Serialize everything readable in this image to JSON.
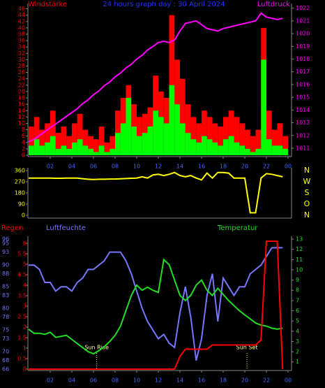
{
  "chart_data": [
    {
      "type": "bar",
      "title": "24 hours graph day : 30 April 2024",
      "ylabel": "Windstärke",
      "y2label": "Luftdruck",
      "xlim": [
        0,
        24
      ],
      "xticks": [
        {
          "value": 2,
          "label": "02"
        },
        {
          "value": 4,
          "label": "04"
        },
        {
          "value": 6,
          "label": "06"
        },
        {
          "value": 8,
          "label": "08"
        },
        {
          "value": 10,
          "label": "10"
        },
        12,
        14,
        16,
        18,
        20,
        22,
        {
          "value": 24,
          "label": "00"
        }
      ],
      "ylim": [
        0,
        47
      ],
      "yticks": [
        0,
        2,
        4,
        6,
        8,
        10,
        12,
        14,
        16,
        18,
        20,
        22,
        24,
        26,
        28,
        30,
        32,
        34,
        36,
        38,
        40,
        42,
        44,
        46
      ],
      "y2lim": [
        1010.45,
        1022.2
      ],
      "y2ticks": [
        1011,
        1012,
        1013,
        1014,
        1015,
        1016,
        1017,
        1018,
        1019,
        1020,
        1021,
        1022
      ],
      "x": [
        0,
        0.5,
        1,
        1.5,
        2,
        2.5,
        3,
        3.5,
        4,
        4.5,
        5,
        5.5,
        6,
        6.5,
        7,
        7.5,
        8,
        8.5,
        9,
        9.5,
        10,
        10.5,
        11,
        11.5,
        12,
        12.5,
        13,
        13.5,
        14,
        14.5,
        15,
        15.5,
        16,
        16.5,
        17,
        17.5,
        18,
        18.5,
        19,
        19.5,
        20,
        20.5,
        21,
        21.5,
        22,
        22.5,
        23,
        23.5
      ],
      "series": [
        {
          "color": "#ff0000",
          "values": [
            9,
            12,
            8,
            10,
            14,
            7,
            9,
            6,
            10,
            13,
            8,
            6,
            5,
            9,
            4,
            6,
            14,
            18,
            22,
            16,
            12,
            13,
            15,
            25,
            20,
            18,
            44,
            30,
            24,
            16,
            12,
            10,
            14,
            12,
            10,
            9,
            12,
            14,
            12,
            10,
            8,
            6,
            8,
            40,
            14,
            8,
            10,
            6
          ]
        },
        {
          "color": "#00ff00",
          "values": [
            3,
            5,
            3,
            4,
            6,
            2,
            3,
            2,
            4,
            5,
            3,
            2,
            1,
            3,
            1,
            2,
            7,
            10,
            18,
            9,
            6,
            7,
            9,
            14,
            12,
            10,
            22,
            16,
            10,
            7,
            5,
            4,
            6,
            5,
            4,
            3,
            5,
            6,
            4,
            3,
            2,
            1,
            2,
            30,
            5,
            3,
            3,
            2
          ]
        },
        {
          "color": "#ff00ff",
          "axis": "y2",
          "values": [
            1011.5,
            1011.7,
            1012.0,
            1012.3,
            1012.6,
            1012.9,
            1013.2,
            1013.5,
            1013.8,
            1014.1,
            1014.5,
            1014.8,
            1015.2,
            1015.5,
            1015.9,
            1016.2,
            1016.6,
            1016.9,
            1017.3,
            1017.6,
            1018.0,
            1018.3,
            1018.7,
            1019.0,
            1019.3,
            1019.4,
            1019.3,
            1019.5,
            1020.2,
            1020.8,
            1020.9,
            1021.0,
            1020.7,
            1020.4,
            1020.3,
            1020.2,
            1020.4,
            1020.5,
            1020.6,
            1020.7,
            1020.8,
            1020.9,
            1021.0,
            1021.6,
            1021.3,
            1021.2,
            1021.1,
            1021.2
          ]
        }
      ]
    },
    {
      "type": "line",
      "xlim": [
        0,
        24
      ],
      "ylim": [
        0,
        360
      ],
      "yticks": [
        0,
        90,
        180,
        270,
        360
      ],
      "direction_labels": [
        "N",
        "O",
        "S",
        "W",
        "N"
      ],
      "x": [
        0,
        0.5,
        1,
        1.5,
        2,
        2.5,
        3,
        3.5,
        4,
        4.5,
        5,
        5.5,
        6,
        6.5,
        7,
        7.5,
        8,
        8.5,
        9,
        9.5,
        10,
        10.5,
        11,
        11.5,
        12,
        12.5,
        13,
        13.5,
        14,
        14.5,
        15,
        15.5,
        16,
        16.5,
        17,
        17.5,
        18,
        18.5,
        19,
        19.5,
        20,
        20.5,
        21,
        21.5,
        22,
        22.5,
        23,
        23.5
      ],
      "series": [
        {
          "color": "#ffff00",
          "values": [
            300,
            300,
            300,
            300,
            300,
            298,
            298,
            300,
            300,
            300,
            295,
            290,
            288,
            290,
            290,
            292,
            292,
            294,
            296,
            298,
            300,
            310,
            300,
            325,
            330,
            320,
            330,
            345,
            320,
            310,
            320,
            300,
            285,
            340,
            300,
            345,
            345,
            340,
            300,
            300,
            300,
            20,
            20,
            300,
            335,
            330,
            320,
            310
          ]
        }
      ]
    },
    {
      "type": "line",
      "labels": {
        "rain": "Regen",
        "humidity": "Luftfeuchte",
        "temperature": "Temperatur"
      },
      "annotations": [
        {
          "text": "Sun Rise",
          "x": 6.3
        },
        {
          "text": "Sun Set",
          "x": 20.2
        }
      ],
      "xlim": [
        0,
        24
      ],
      "xticks": [
        {
          "value": 2,
          "label": "02"
        },
        {
          "value": 4,
          "label": "04"
        },
        {
          "value": 6,
          "label": "06"
        },
        {
          "value": 8,
          "label": "08"
        },
        {
          "value": 10,
          "label": "10"
        },
        12,
        14,
        16,
        18,
        20,
        22,
        {
          "value": 24,
          "label": "00"
        }
      ],
      "ylim": [
        0,
        6.2
      ],
      "yticks": [
        0,
        0.5,
        1,
        1.5,
        2,
        2.5,
        3,
        3.5,
        4,
        4.5,
        5,
        5.5,
        6
      ],
      "y2lim": [
        0.3,
        13
      ],
      "y2ticks": [
        1,
        2,
        3,
        4,
        5,
        6,
        7,
        8,
        9,
        10,
        11,
        12,
        13
      ],
      "y3lim": [
        66,
        96
      ],
      "y3ticks": [
        66,
        68,
        70,
        73,
        75,
        78,
        80,
        83,
        85,
        88,
        90,
        93,
        95,
        96
      ],
      "x": [
        0,
        0.5,
        1,
        1.5,
        2,
        2.5,
        3,
        3.5,
        4,
        4.5,
        5,
        5.5,
        6,
        6.5,
        7,
        7.5,
        8,
        8.5,
        9,
        9.5,
        10,
        10.5,
        11,
        11.5,
        12,
        12.5,
        13,
        13.5,
        14,
        14.5,
        15,
        15.5,
        16,
        16.5,
        17,
        17.5,
        18,
        18.5,
        19,
        19.5,
        20,
        20.5,
        21,
        21.5,
        22,
        22.5,
        23,
        23.5
      ],
      "series": [
        {
          "color": "#7777ff",
          "axis": "y3",
          "values": [
            90,
            90,
            89,
            86,
            86,
            84,
            85,
            85,
            84,
            86,
            87,
            89,
            89,
            90,
            91,
            93,
            93,
            93,
            91,
            88,
            84,
            80,
            77,
            75,
            73,
            74,
            72,
            71,
            79,
            85,
            78,
            68,
            73,
            83,
            88,
            77,
            87,
            85,
            83,
            85,
            85,
            88,
            89,
            90,
            92,
            94,
            94,
            94
          ]
        },
        {
          "color": "#22dd22",
          "axis": "y2",
          "values": [
            4.2,
            3.8,
            3.8,
            3.7,
            3.9,
            3.4,
            3.5,
            3.6,
            3.2,
            2.8,
            2.4,
            2.0,
            1.8,
            2.1,
            2.5,
            3.0,
            3.6,
            4.5,
            6.0,
            7.5,
            8.5,
            8.0,
            8.3,
            8.0,
            7.8,
            11.0,
            10.5,
            9.0,
            7.5,
            7.0,
            7.5,
            8.5,
            9.0,
            8.0,
            7.5,
            8.2,
            7.6,
            7.0,
            6.5,
            6.0,
            5.6,
            5.2,
            4.8,
            4.6,
            4.5,
            4.3,
            4.2,
            4.3
          ]
        },
        {
          "color": "#ff0000",
          "values": [
            0,
            0,
            0,
            0,
            0,
            0,
            0,
            0,
            0,
            0,
            0,
            0,
            0,
            0,
            0,
            0,
            0,
            0,
            0,
            0,
            0,
            0,
            0,
            0,
            0,
            0,
            0,
            0,
            0.6,
            0.95,
            0.95,
            0.95,
            0.95,
            0.95,
            1.15,
            1.15,
            1.15,
            1.15,
            1.15,
            1.15,
            1.15,
            1.15,
            1.15,
            1.4,
            6.1,
            6.1,
            6.1,
            0
          ]
        }
      ]
    }
  ]
}
